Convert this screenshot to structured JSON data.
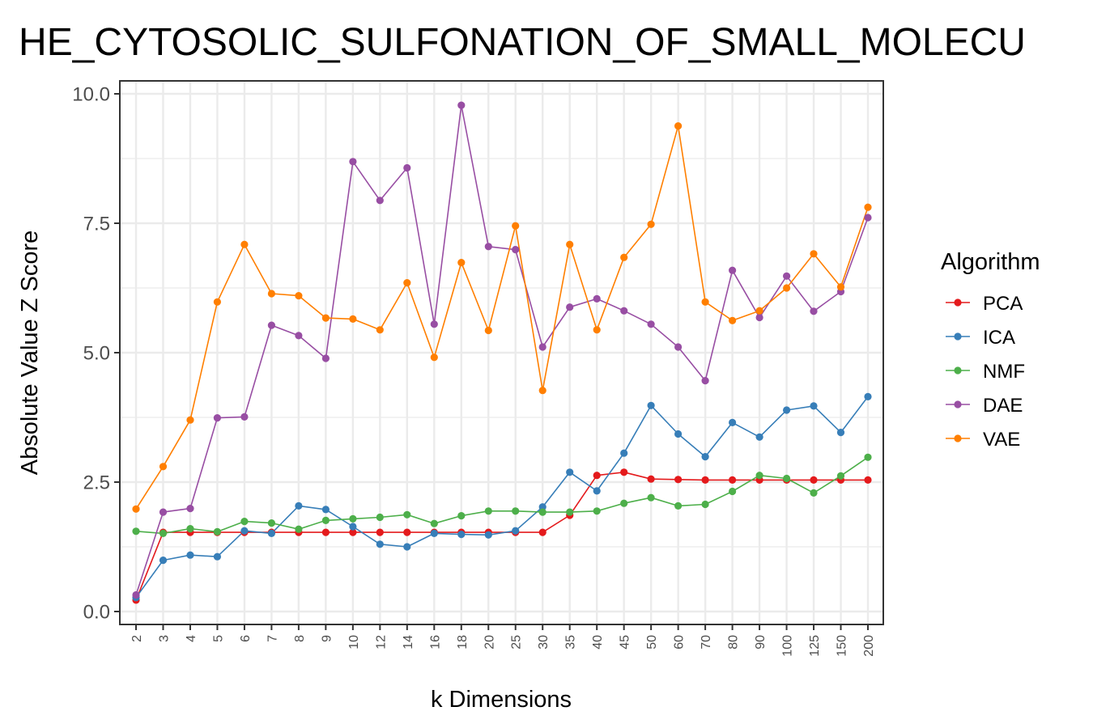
{
  "chart_data": {
    "type": "line",
    "title": "HE_CYTOSOLIC_SULFONATION_OF_SMALL_MOLECU",
    "xlabel": "k Dimensions",
    "ylabel": "Absolute Value Z Score",
    "ylim": [
      0,
      10
    ],
    "yticks": [
      0.0,
      2.5,
      5.0,
      7.5,
      10.0
    ],
    "ytick_labels": [
      "0.0",
      "2.5",
      "5.0",
      "7.5",
      "10.0"
    ],
    "grid": true,
    "legend": {
      "title": "Algorithm",
      "position": "right"
    },
    "categories": [
      "2",
      "3",
      "4",
      "5",
      "6",
      "7",
      "8",
      "9",
      "10",
      "12",
      "14",
      "16",
      "18",
      "20",
      "25",
      "30",
      "35",
      "40",
      "45",
      "50",
      "60",
      "70",
      "80",
      "90",
      "100",
      "125",
      "150",
      "200"
    ],
    "series": [
      {
        "name": "PCA",
        "color": "#e41a1c",
        "values": [
          0.22,
          1.53,
          1.53,
          1.53,
          1.53,
          1.53,
          1.53,
          1.53,
          1.53,
          1.53,
          1.53,
          1.53,
          1.53,
          1.53,
          1.53,
          1.53,
          1.86,
          2.63,
          2.69,
          2.56,
          2.55,
          2.54,
          2.54,
          2.54,
          2.54,
          2.54,
          2.54,
          2.54
        ]
      },
      {
        "name": "ICA",
        "color": "#377eb8",
        "values": [
          0.27,
          0.99,
          1.09,
          1.06,
          1.56,
          1.51,
          2.04,
          1.97,
          1.64,
          1.3,
          1.25,
          1.51,
          1.49,
          1.48,
          1.56,
          2.02,
          2.69,
          2.33,
          3.06,
          3.98,
          3.43,
          2.99,
          3.65,
          3.37,
          3.89,
          3.97,
          3.46,
          4.15
        ]
      },
      {
        "name": "NMF",
        "color": "#4daf4a",
        "values": [
          1.55,
          1.51,
          1.6,
          1.54,
          1.74,
          1.71,
          1.59,
          1.76,
          1.79,
          1.82,
          1.87,
          1.7,
          1.85,
          1.94,
          1.94,
          1.92,
          1.92,
          1.94,
          2.09,
          2.2,
          2.04,
          2.07,
          2.32,
          2.63,
          2.57,
          2.29,
          2.62,
          2.98
        ]
      },
      {
        "name": "DAE",
        "color": "#984ea3",
        "values": [
          0.32,
          1.92,
          1.99,
          3.74,
          3.76,
          5.53,
          5.33,
          4.89,
          8.69,
          7.94,
          8.57,
          5.55,
          9.78,
          7.05,
          6.99,
          5.11,
          5.88,
          6.04,
          5.81,
          5.55,
          5.11,
          4.46,
          6.59,
          5.68,
          6.48,
          5.8,
          6.18,
          7.61
        ]
      },
      {
        "name": "VAE",
        "color": "#ff7f00",
        "values": [
          1.98,
          2.8,
          3.7,
          5.98,
          7.09,
          6.14,
          6.1,
          5.67,
          5.65,
          5.44,
          6.35,
          4.91,
          6.74,
          5.43,
          7.45,
          4.27,
          7.09,
          5.44,
          6.84,
          7.48,
          9.38,
          5.98,
          5.62,
          5.81,
          6.25,
          6.91,
          6.27,
          7.81
        ]
      }
    ]
  }
}
